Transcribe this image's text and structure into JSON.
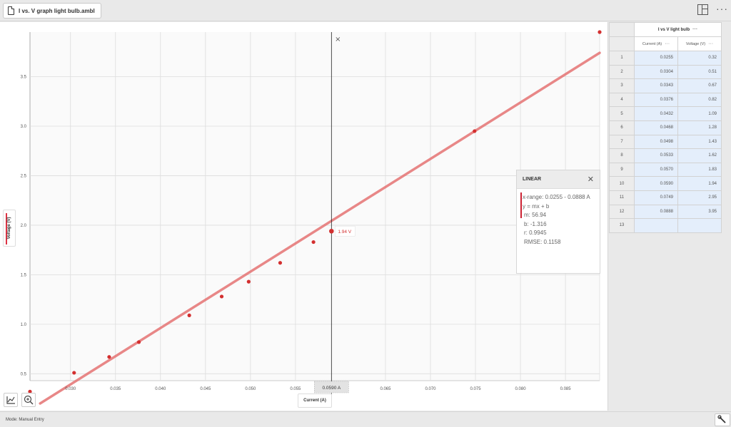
{
  "window": {
    "file_name": "I vs. V graph light bulb.ambl"
  },
  "status": {
    "mode": "Mode: Manual Entry"
  },
  "graph": {
    "x_axis_label": "Current (A)",
    "y_axis_label": "Voltage (V)",
    "cursor_x_label": "0.0590 A",
    "hover_label": "1.94 V",
    "series_color": "#d32f2f",
    "fit_color": "#e57373"
  },
  "fit": {
    "title": "LINEAR",
    "x_range": "x-range: 0.0255 - 0.0888 A",
    "equation": "y = mx + b",
    "m": "m: 56.94",
    "b": "b: -1.316",
    "r": "r: 0.9945",
    "rmse": "RMSE: 0.1158"
  },
  "table": {
    "dataset_name": "I vs V light bulb",
    "columns": [
      "Current (A)",
      "Voltage (V)"
    ],
    "rows": [
      [
        "0.0255",
        "0.32"
      ],
      [
        "0.0304",
        "0.51"
      ],
      [
        "0.0343",
        "0.67"
      ],
      [
        "0.0376",
        "0.82"
      ],
      [
        "0.0432",
        "1.09"
      ],
      [
        "0.0468",
        "1.28"
      ],
      [
        "0.0498",
        "1.43"
      ],
      [
        "0.0533",
        "1.62"
      ],
      [
        "0.0570",
        "1.83"
      ],
      [
        "0.0590",
        "1.94"
      ],
      [
        "0.0749",
        "2.95"
      ],
      [
        "0.0888",
        "3.95"
      ]
    ],
    "next_row_number": "13"
  },
  "chart_data": {
    "type": "scatter",
    "xlabel": "Current (A)",
    "ylabel": "Voltage (V)",
    "xlim": [
      0.0255,
      0.0888
    ],
    "ylim": [
      0.2,
      3.95
    ],
    "x_ticks": [
      "0.030",
      "0.035",
      "0.040",
      "0.045",
      "0.050",
      "0.055",
      "0.065",
      "0.070",
      "0.075",
      "0.080",
      "0.085"
    ],
    "y_ticks": [
      "0.5",
      "1.0",
      "1.5",
      "2.0",
      "2.5",
      "3.0",
      "3.5"
    ],
    "grid": true,
    "series": [
      {
        "name": "I vs V light bulb",
        "x": [
          0.0255,
          0.0304,
          0.0343,
          0.0376,
          0.0432,
          0.0468,
          0.0498,
          0.0533,
          0.057,
          0.059,
          0.0749,
          0.0888
        ],
        "y": [
          0.32,
          0.51,
          0.67,
          0.82,
          1.09,
          1.28,
          1.43,
          1.62,
          1.83,
          1.94,
          2.95,
          3.95
        ]
      }
    ],
    "fit": {
      "type": "linear",
      "m": 56.94,
      "b": -1.316
    },
    "cursor_x": 0.059,
    "hover_point": {
      "x": 0.059,
      "y": 1.94
    }
  }
}
